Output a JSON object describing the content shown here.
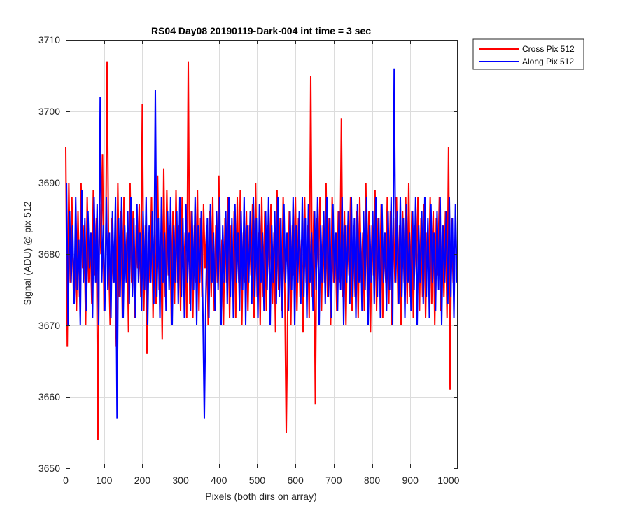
{
  "chart_data": {
    "type": "line",
    "title": "RS04 Day08 20190119-Dark-004 int time = 3 sec",
    "xlabel": "Pixels (both dirs on array)",
    "ylabel": "Signal (ADU) @ pix 512",
    "xlim": [
      0,
      1024
    ],
    "ylim": [
      3650,
      3710
    ],
    "xticks": [
      0,
      100,
      200,
      300,
      400,
      500,
      600,
      700,
      800,
      900,
      1000
    ],
    "yticks": [
      3650,
      3660,
      3670,
      3680,
      3690,
      3700,
      3710
    ],
    "grid": true,
    "legend_position": "outside-top-right",
    "series": [
      {
        "name": "Cross Pix 512",
        "color": "#ff0000",
        "x_start": 0,
        "x_step": 4,
        "values": [
          3695,
          3667,
          3690,
          3676,
          3688,
          3675,
          3680,
          3672,
          3686,
          3674,
          3690,
          3678,
          3684,
          3670,
          3688,
          3676,
          3683,
          3673,
          3689,
          3677,
          3685,
          3654,
          3687,
          3680,
          3694,
          3672,
          3678,
          3707,
          3680,
          3670,
          3685,
          3676,
          3682,
          3667,
          3690,
          3674,
          3686,
          3671,
          3688,
          3678,
          3683,
          3669,
          3690,
          3676,
          3686,
          3671,
          3684,
          3678,
          3687,
          3674,
          3701,
          3672,
          3684,
          3666,
          3683,
          3676,
          3688,
          3671,
          3685,
          3673,
          3691,
          3675,
          3683,
          3668,
          3692,
          3674,
          3689,
          3677,
          3684,
          3670,
          3686,
          3673,
          3689,
          3676,
          3684,
          3672,
          3688,
          3676,
          3683,
          3671,
          3707,
          3673,
          3686,
          3671,
          3684,
          3676,
          3689,
          3672,
          3685,
          3674,
          3687,
          3678,
          3684,
          3670,
          3686,
          3674,
          3688,
          3672,
          3684,
          3676,
          3691,
          3673,
          3682,
          3670,
          3685,
          3676,
          3688,
          3671,
          3684,
          3674,
          3686,
          3671,
          3688,
          3676,
          3689,
          3670,
          3683,
          3676,
          3686,
          3672,
          3684,
          3677,
          3687,
          3671,
          3690,
          3674,
          3683,
          3670,
          3688,
          3674,
          3686,
          3672,
          3684,
          3677,
          3687,
          3673,
          3683,
          3669,
          3689,
          3675,
          3685,
          3672,
          3688,
          3676,
          3655,
          3673,
          3686,
          3670,
          3684,
          3677,
          3688,
          3672,
          3685,
          3674,
          3682,
          3669,
          3688,
          3676,
          3684,
          3671,
          3705,
          3674,
          3686,
          3659,
          3685,
          3678,
          3688,
          3672,
          3684,
          3676,
          3690,
          3674,
          3685,
          3670,
          3688,
          3676,
          3683,
          3672,
          3686,
          3676,
          3699,
          3674,
          3686,
          3670,
          3684,
          3677,
          3688,
          3672,
          3684,
          3674,
          3686,
          3671,
          3688,
          3676,
          3683,
          3672,
          3690,
          3674,
          3686,
          3669,
          3684,
          3677,
          3689,
          3672,
          3685,
          3674,
          3687,
          3671,
          3683,
          3676,
          3688,
          3673,
          3686,
          3670,
          3685,
          3676,
          3688,
          3673,
          3684,
          3670,
          3686,
          3676,
          3688,
          3673,
          3690,
          3674,
          3686,
          3671,
          3684,
          3677,
          3688,
          3672,
          3685,
          3674,
          3687,
          3671,
          3683,
          3676,
          3688,
          3673,
          3686,
          3670,
          3685,
          3677,
          3688,
          3672,
          3684,
          3674,
          3686,
          3671,
          3695,
          3661,
          3685,
          3676
        ]
      },
      {
        "name": "Along Pix 512",
        "color": "#0000ff",
        "x_start": 2,
        "x_step": 4,
        "values": [
          3690,
          3670,
          3686,
          3676,
          3684,
          3673,
          3688,
          3675,
          3682,
          3670,
          3689,
          3676,
          3685,
          3672,
          3686,
          3678,
          3683,
          3671,
          3688,
          3676,
          3687,
          3670,
          3702,
          3676,
          3684,
          3672,
          3688,
          3675,
          3683,
          3671,
          3686,
          3676,
          3688,
          3657,
          3685,
          3674,
          3688,
          3671,
          3684,
          3676,
          3686,
          3673,
          3688,
          3674,
          3685,
          3671,
          3687,
          3676,
          3683,
          3672,
          3686,
          3675,
          3688,
          3670,
          3684,
          3676,
          3686,
          3673,
          3703,
          3674,
          3685,
          3671,
          3688,
          3676,
          3683,
          3672,
          3686,
          3675,
          3688,
          3670,
          3684,
          3676,
          3686,
          3673,
          3688,
          3674,
          3685,
          3671,
          3687,
          3676,
          3683,
          3672,
          3686,
          3675,
          3688,
          3670,
          3684,
          3676,
          3686,
          3673,
          3657,
          3674,
          3685,
          3671,
          3687,
          3676,
          3683,
          3672,
          3686,
          3675,
          3688,
          3670,
          3684,
          3676,
          3686,
          3673,
          3688,
          3674,
          3685,
          3671,
          3687,
          3676,
          3683,
          3672,
          3686,
          3675,
          3688,
          3670,
          3684,
          3676,
          3686,
          3673,
          3688,
          3674,
          3685,
          3671,
          3687,
          3676,
          3683,
          3672,
          3686,
          3675,
          3688,
          3670,
          3684,
          3676,
          3686,
          3673,
          3688,
          3674,
          3685,
          3671,
          3687,
          3676,
          3683,
          3672,
          3686,
          3675,
          3688,
          3670,
          3684,
          3676,
          3686,
          3673,
          3688,
          3674,
          3685,
          3671,
          3687,
          3676,
          3683,
          3672,
          3686,
          3675,
          3688,
          3670,
          3684,
          3676,
          3686,
          3673,
          3688,
          3674,
          3685,
          3671,
          3687,
          3676,
          3683,
          3672,
          3686,
          3675,
          3688,
          3670,
          3684,
          3676,
          3686,
          3673,
          3688,
          3674,
          3685,
          3671,
          3687,
          3676,
          3683,
          3672,
          3686,
          3675,
          3688,
          3670,
          3684,
          3676,
          3686,
          3673,
          3688,
          3674,
          3685,
          3671,
          3687,
          3676,
          3683,
          3672,
          3686,
          3675,
          3688,
          3670,
          3706,
          3676,
          3686,
          3673,
          3688,
          3674,
          3685,
          3671,
          3687,
          3676,
          3683,
          3672,
          3686,
          3675,
          3688,
          3670,
          3684,
          3676,
          3686,
          3673,
          3688,
          3674,
          3685,
          3671,
          3687,
          3676,
          3683,
          3672,
          3686,
          3675,
          3688,
          3670,
          3684,
          3676,
          3686,
          3673,
          3688,
          3674,
          3685,
          3671,
          3687,
          3676
        ]
      }
    ]
  }
}
